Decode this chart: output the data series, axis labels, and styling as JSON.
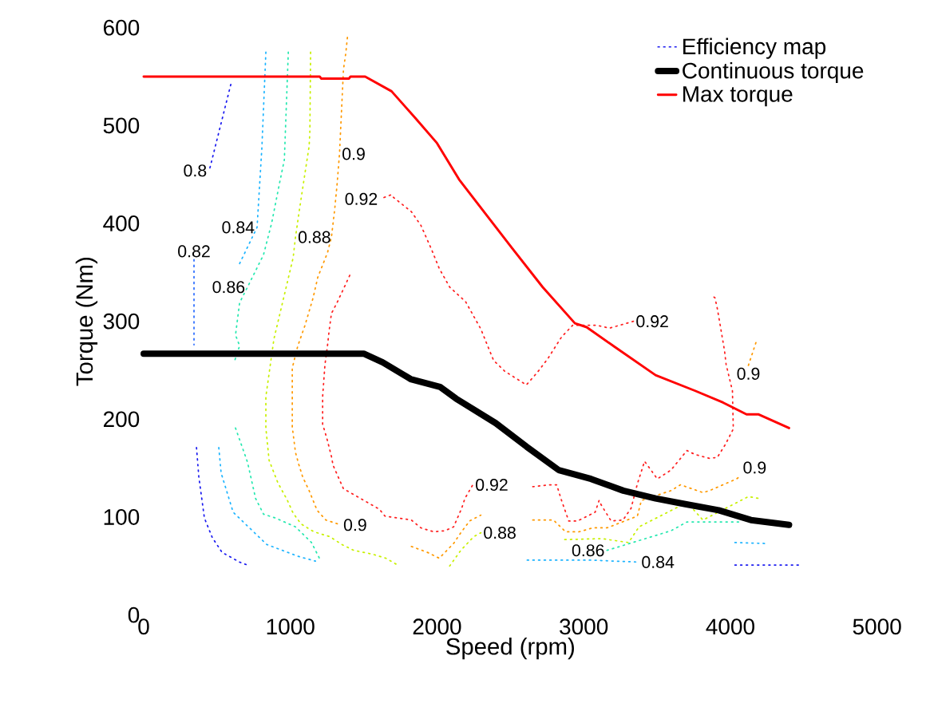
{
  "chart_data": {
    "type": "line",
    "xlabel": "Speed (rpm)",
    "ylabel": "Torque (Nm)",
    "xlim": [
      0,
      5000
    ],
    "ylim": [
      0,
      600
    ],
    "xticks": [
      0,
      1000,
      2000,
      3000,
      4000,
      5000
    ],
    "yticks": [
      0,
      100,
      200,
      300,
      400,
      500,
      600
    ],
    "legend": "top right",
    "marker": "none",
    "series": [
      {
        "name": "Efficiency map",
        "color": "#1c1cf0",
        "line_style": "dotted",
        "x": [
          594,
          447,
          null,
          360,
          376,
          414,
          468,
          534,
          654,
          708,
          null,
          4031,
          4467
        ],
        "values": [
          542,
          454,
          null,
          171,
          141,
          99,
          79,
          64,
          54,
          51,
          null,
          51,
          51
        ]
      },
      {
        "color": "#2a6cff",
        "line_style": "dotted",
        "x": [
          343,
          343
        ],
        "values": [
          363,
          276
        ]
      },
      {
        "color": "#1eb4ff",
        "line_style": "dotted",
        "x": [
          833,
          806,
          773,
          654,
          null,
          512,
          528,
          610,
          839,
          1051,
          1171,
          null,
          2615,
          3050,
          3377,
          null,
          4031,
          4249
        ],
        "values": [
          575,
          478,
          396,
          359,
          null,
          171,
          145,
          105,
          72,
          60,
          55,
          null,
          56,
          56,
          54,
          null,
          74,
          73
        ]
      },
      {
        "color": "#27e8b0",
        "line_style": "dotted",
        "x": [
          986,
          959,
          926,
          872,
          817,
          708,
          654,
          626,
          654,
          621,
          null,
          626,
          708,
          763,
          817,
          899,
          1035,
          1144,
          1198,
          null,
          3159,
          3595,
          3704,
          4085
        ],
        "values": [
          575,
          465,
          441,
          400,
          368,
          335,
          319,
          286,
          275,
          260,
          null,
          191,
          156,
          119,
          103,
          99,
          90,
          74,
          58,
          null,
          66,
          86,
          95,
          95
        ]
      },
      {
        "color": "#c8f000",
        "line_style": "dotted",
        "x": [
          1138,
          1133,
          1128,
          1089,
          1062,
          1035,
          1019,
          888,
          861,
          833,
          833,
          855,
          915,
          980,
          1019,
          1073,
          1160,
          1269,
          1351,
          1433,
          1563,
          1650,
          1743,
          null,
          2086,
          2162,
          2250,
          2299,
          null,
          2871,
          3121,
          3306,
          3377,
          3704,
          3813,
          4123,
          4194
        ],
        "values": [
          575,
          494,
          479,
          441,
          414,
          386,
          365,
          282,
          253,
          223,
          191,
          158,
          135,
          117,
          104,
          93,
          85,
          80,
          72,
          66,
          62,
          58,
          50,
          null,
          50,
          66,
          80,
          84,
          null,
          77,
          78,
          74,
          90,
          115,
          97,
          121,
          119
        ]
      },
      {
        "color": "#ff9900",
        "line_style": "dotted",
        "x": [
          1389,
          1378,
          1362,
          1335,
          1318,
          1302,
          1280,
          1253,
          1187,
          1155,
          1100,
          1051,
          1024,
          1013,
          1013,
          1035,
          1057,
          1084,
          1128,
          1182,
          1242,
          1345,
          null,
          1825,
          1934,
          2015,
          2113,
          2162,
          2222,
          2299,
          null,
          2653,
          2794,
          2876,
          2969,
          3061,
          3159,
          3366,
          3393,
          3595,
          3660,
          3813,
          3857,
          4042,
          4069,
          null,
          4123,
          4178
        ],
        "values": [
          590,
          574,
          557,
          471,
          439,
          414,
          386,
          370,
          345,
          324,
          296,
          275,
          259,
          252,
          192,
          166,
          154,
          141,
          127,
          107,
          97,
          92,
          null,
          70,
          64,
          58,
          73,
          84,
          96,
          102,
          null,
          97,
          97,
          85,
          85,
          89,
          89,
          101,
          117,
          127,
          133,
          125,
          127,
          139,
          142,
          null,
          255,
          280
        ]
      },
      {
        "color": "#ff2020",
        "line_style": "dotted",
        "x": [
          1683,
          1612,
          null,
          1405,
          1362,
          1318,
          1280,
          1264,
          1253,
          1236,
          1220,
          1220,
          1236,
          1253,
          1280,
          1291,
          1335,
          1362,
          1607,
          1645,
          1825,
          1890,
          1977,
          2053,
          2113,
          2168,
          2190,
          2244,
          null,
          2653,
          2767,
          2816,
          2849,
          2898,
          2958,
          3078,
          3105,
          3121,
          3187,
          3268,
          3323,
          3366,
          3415,
          3502,
          3595,
          3704,
          3758,
          3857,
          3911,
          3965,
          4020,
          4014,
          3971,
          3960,
          3933,
          3911,
          3895,
          3867,
          null,
          3339,
          3176,
          3088,
          2925,
          2849,
          2756,
          2685,
          2609,
          2462,
          2386,
          2353,
          2299,
          2195,
          2086,
          2015,
          1961,
          1890,
          1825,
          1683
        ],
        "values": [
          429,
          425,
          null,
          347,
          333,
          319,
          308,
          290,
          275,
          256,
          223,
          195,
          187,
          178,
          162,
          153,
          138,
          129,
          108,
          101,
          97,
          89,
          85,
          86,
          90,
          109,
          119,
          133,
          null,
          131,
          133,
          133,
          117,
          96,
          96,
          105,
          117,
          112,
          96,
          97,
          109,
          134,
          157,
          139,
          148,
          168,
          164,
          160,
          161,
          174,
          190,
          229,
          256,
          270,
          294,
          313,
          324,
          327,
          null,
          300,
          293,
          296,
          296,
          284,
          262,
          248,
          235,
          249,
          260,
          272,
          292,
          320,
          335,
          354,
          374,
          398,
          412,
          429
        ]
      },
      {
        "name": "Continuous torque",
        "color": "#000000",
        "line_style": "solid",
        "x": [
          0,
          1500,
          1630,
          1820,
          2020,
          2130,
          2400,
          2610,
          2830,
          3050,
          3270,
          3490,
          3700,
          3920,
          4140,
          4400
        ],
        "values": [
          267,
          267,
          258,
          241,
          233,
          221,
          196,
          172,
          148,
          139,
          127,
          119,
          113,
          107,
          97,
          92
        ]
      },
      {
        "name": "Max torque",
        "color": "#ff0000",
        "line_style": "solid",
        "x": [
          0,
          1200,
          1210,
          1400,
          1410,
          1510,
          1690,
          1850,
          2000,
          2150,
          2340,
          2505,
          2720,
          2940,
          3020,
          3210,
          3490,
          3760,
          3950,
          4110,
          4190,
          4400
        ],
        "values": [
          550,
          550,
          548,
          548,
          550,
          550,
          535,
          508,
          482,
          445,
          408,
          376,
          335,
          298,
          294,
          274,
          245,
          229,
          217,
          205,
          205,
          191
        ]
      }
    ],
    "annotations": [
      {
        "text": "0.8",
        "x": 447,
        "y": 454
      },
      {
        "text": "0.82",
        "x": 343,
        "y": 363
      },
      {
        "text": "0.84",
        "x": 773,
        "y": 396
      },
      {
        "text": "0.86",
        "x": 708,
        "y": 335
      },
      {
        "text": "0.88",
        "x": 1035,
        "y": 386
      },
      {
        "text": "0.9",
        "x": 1335,
        "y": 471
      },
      {
        "text": "0.92",
        "x": 1612,
        "y": 425
      },
      {
        "text": "0.92",
        "x": 3339,
        "y": 300
      },
      {
        "text": "0.9",
        "x": 4123,
        "y": 255
      },
      {
        "text": "0.9",
        "x": 4069,
        "y": 142
      },
      {
        "text": "0.92",
        "x": 2244,
        "y": 133
      },
      {
        "text": "0.9",
        "x": 1345,
        "y": 92
      },
      {
        "text": "0.88",
        "x": 2299,
        "y": 84
      },
      {
        "text": "0.86",
        "x": 3159,
        "y": 66
      },
      {
        "text": "0.84",
        "x": 3377,
        "y": 54
      }
    ]
  }
}
